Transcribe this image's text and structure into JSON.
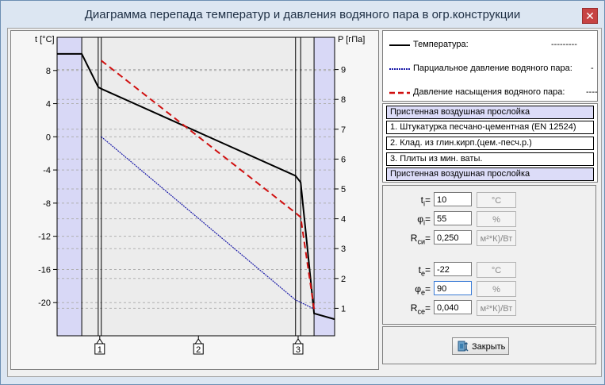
{
  "window": {
    "title": "Диаграмма перепада температур и давления водяного пара в огр.конструкции",
    "close_glyph": "✕"
  },
  "legend": {
    "items": [
      {
        "label": "Температура:",
        "tail": "---------",
        "color": "#000000"
      },
      {
        "label": "Парциальное давление водяного пара:",
        "tail": "-",
        "color": "#1a1aa8"
      },
      {
        "label": "Давление насыщения водяного пара:",
        "tail": "----",
        "color": "#d01010"
      }
    ]
  },
  "layers": [
    {
      "label": "Пристенная воздушная прослойка",
      "type": "air"
    },
    {
      "label": "1. Штукатурка песчано-цементная (EN 12524)",
      "type": "layer"
    },
    {
      "label": "2. Клад. из глин.кирп.(цем.-песч.р.)",
      "type": "layer"
    },
    {
      "label": "3. Плиты из мин. ваты.",
      "type": "layer"
    },
    {
      "label": "Пристенная воздушная прослойка",
      "type": "air"
    }
  ],
  "params": {
    "ti": {
      "sym": "t",
      "sub": "i",
      "value": "10",
      "unit": "°C"
    },
    "phii": {
      "sym": "φ",
      "sub": "i",
      "value": "55",
      "unit": "%"
    },
    "rsi": {
      "sym": "R",
      "sub": "си",
      "value": "0,250",
      "unit": "м²*К)/Вт"
    },
    "te": {
      "sym": "t",
      "sub": "e",
      "value": "-22",
      "unit": "°C"
    },
    "phie": {
      "sym": "φ",
      "sub": "e",
      "value": "90",
      "unit": "%"
    },
    "rse": {
      "sym": "R",
      "sub": "се",
      "value": "0,040",
      "unit": "м²*К)/Вт"
    }
  },
  "buttons": {
    "close_label": "Закрыть",
    "close_icon": "exit-door-icon"
  },
  "chart_data": {
    "type": "line",
    "left_axis": {
      "label": "t [°C]",
      "ticks": [
        8,
        4,
        0,
        -4,
        -8,
        -12,
        -16,
        -20
      ],
      "range": [
        -24,
        12
      ]
    },
    "right_axis": {
      "label": "P [гПа]",
      "ticks": [
        9,
        8,
        7,
        6,
        5,
        4,
        3,
        2,
        1
      ],
      "range": [
        0.08,
        10.08
      ]
    },
    "layer_markers": [
      "1",
      "2",
      "3"
    ],
    "colors": {
      "air_band": "#d8d8f6",
      "grid": "#b0b0b0"
    },
    "series": [
      {
        "name": "Температура",
        "axis": "left",
        "color": "#000000",
        "x": [
          0,
          12,
          20,
          21.5,
          116,
          118.5,
          125,
          135
        ],
        "values": [
          10,
          10,
          6,
          5.8,
          -4.7,
          -5.5,
          -21.3,
          -22
        ]
      },
      {
        "name": "Парциальное давление водяного пара",
        "axis": "right",
        "color": "#1a1aa8",
        "x": [
          21.5,
          116,
          118.5,
          125
        ],
        "values": [
          6.75,
          1.28,
          1.2,
          0.98
        ]
      },
      {
        "name": "Давление насыщения водяного пара",
        "axis": "right",
        "color": "#d01010",
        "x": [
          21.5,
          116,
          118.5,
          125
        ],
        "values": [
          9.3,
          4.2,
          4.05,
          0.98
        ]
      }
    ]
  }
}
